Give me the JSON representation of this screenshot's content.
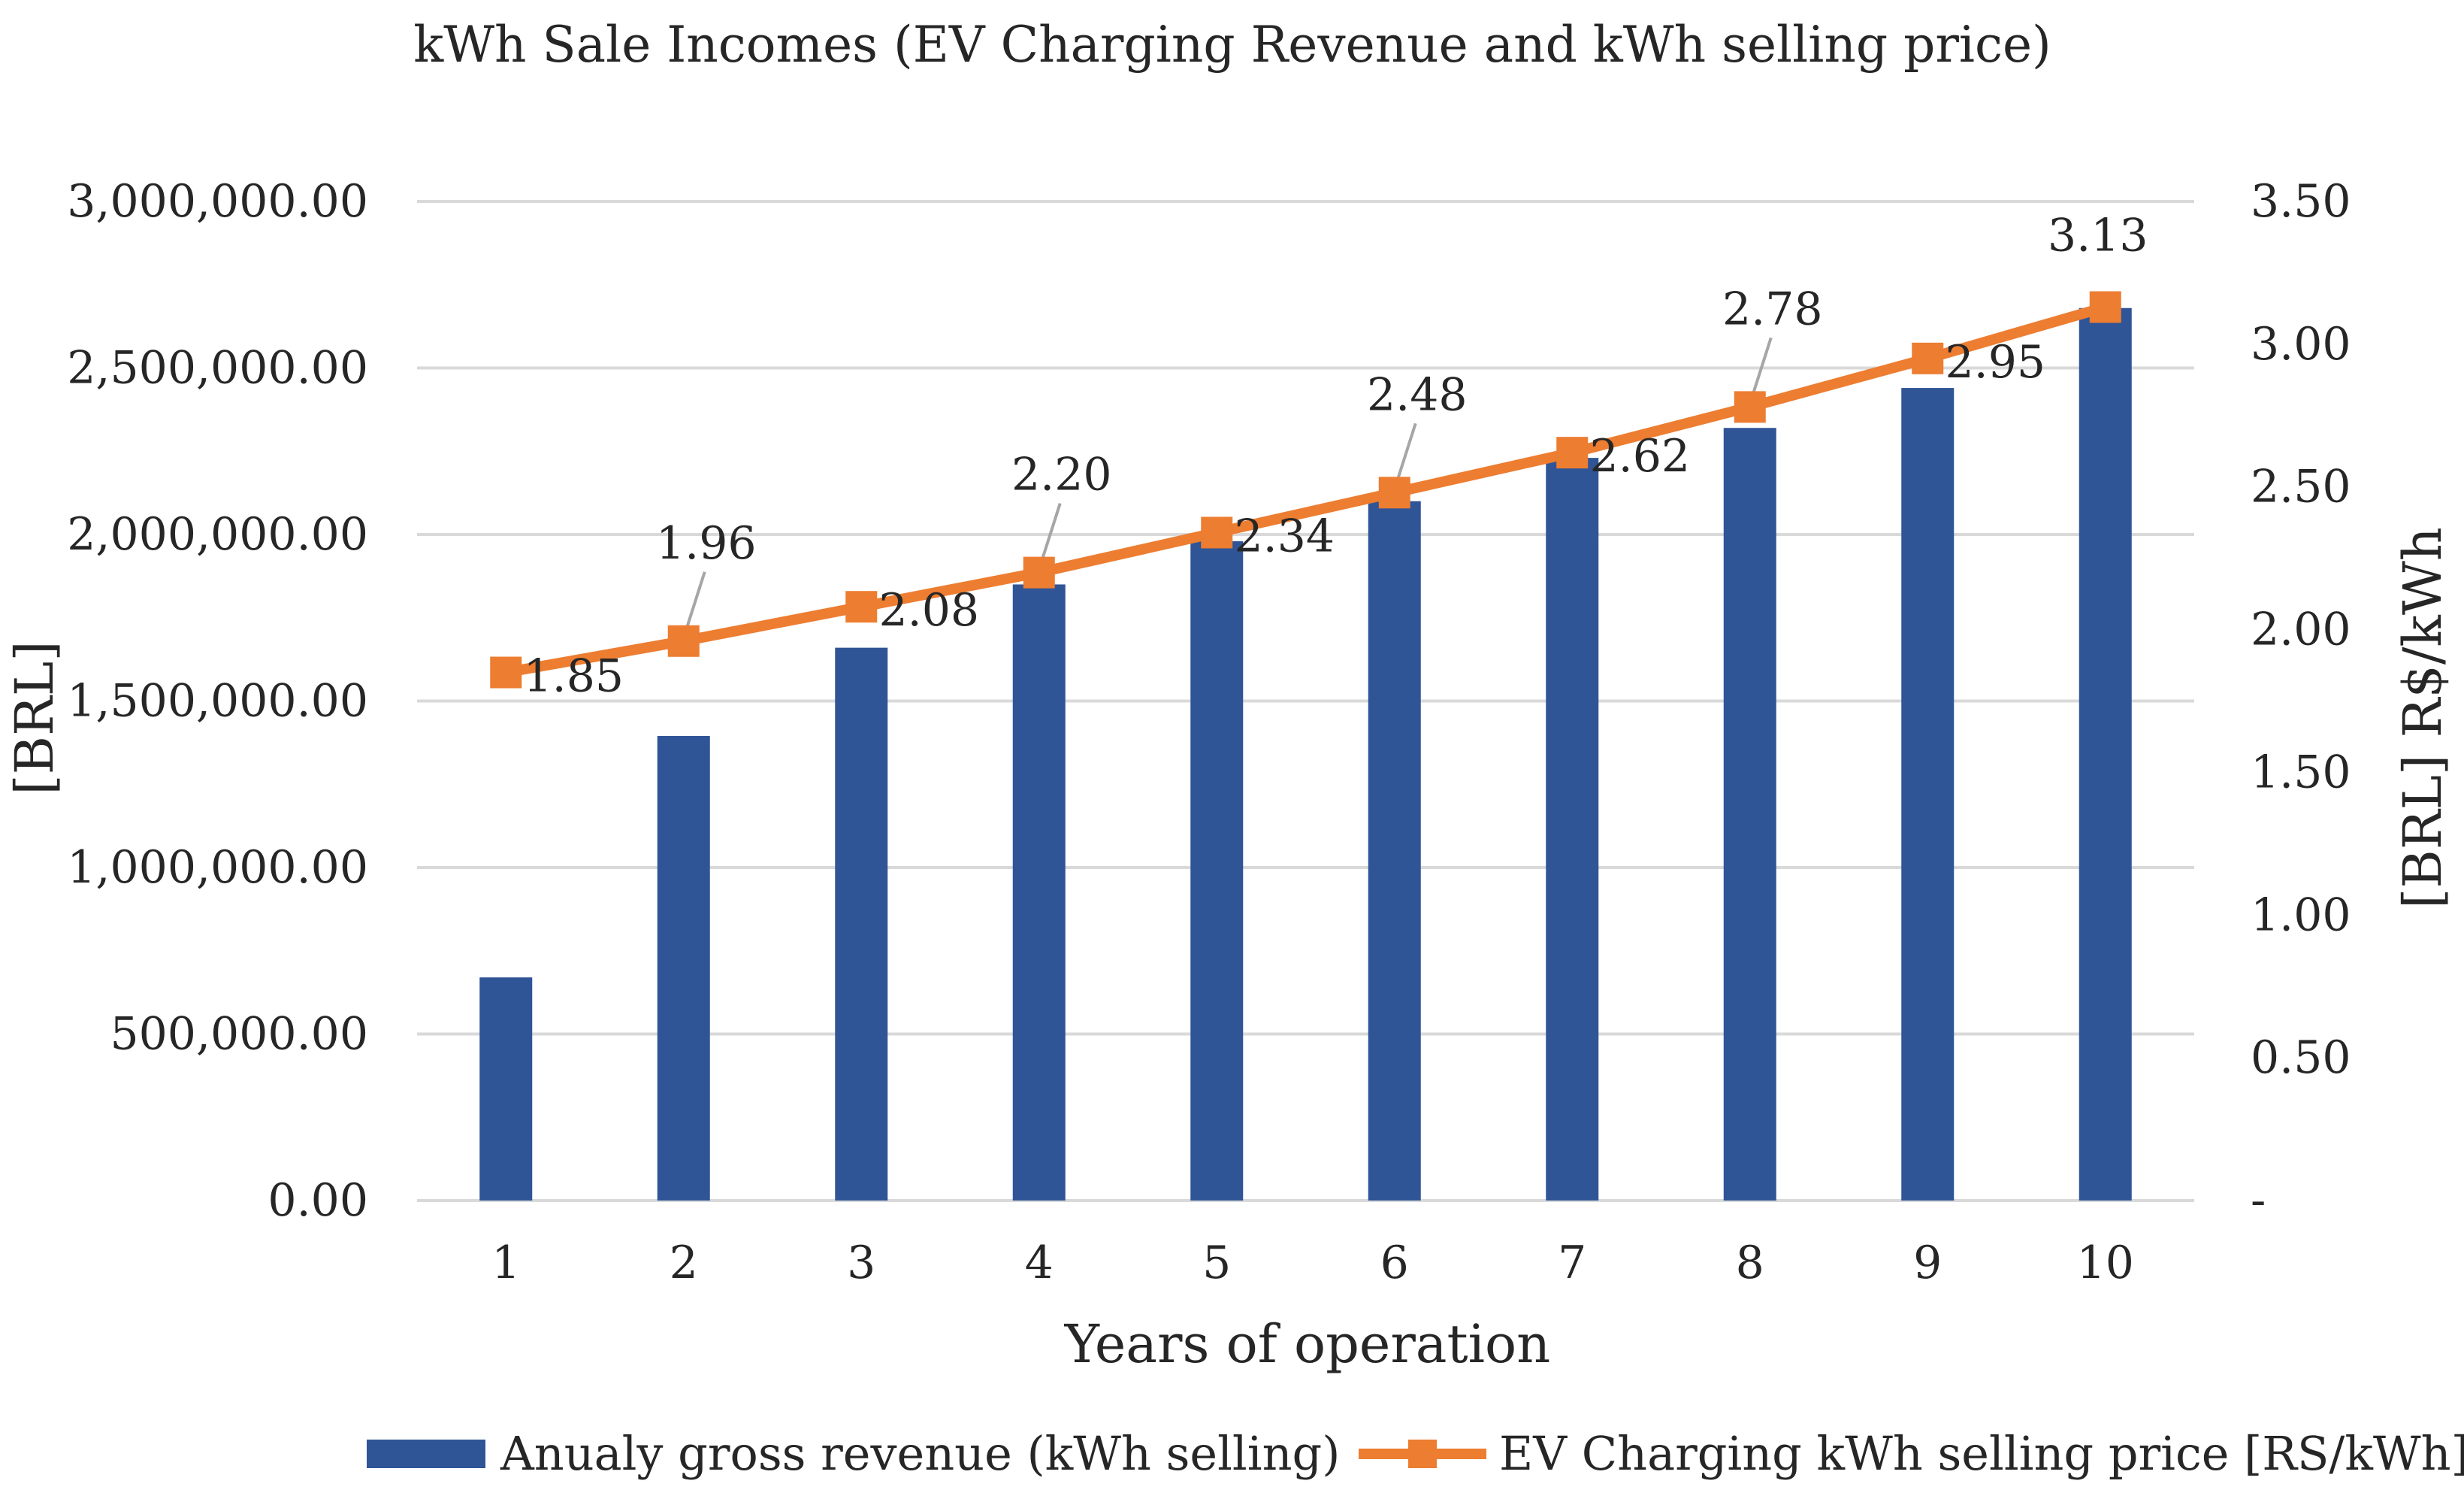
{
  "chart_data": {
    "type": "bar+line",
    "title": "kWh Sale Incomes (EV Charging Revenue and kWh selling price)",
    "xlabel": "Years of operation",
    "ylabel_left": "[BRL]",
    "ylabel_right": "[BRL] R$/kWh",
    "categories": [
      "1",
      "2",
      "3",
      "4",
      "5",
      "6",
      "7",
      "8",
      "9",
      "10"
    ],
    "ylim_left": [
      0,
      3000000
    ],
    "ylim_right": [
      0,
      3.5
    ],
    "y_ticks_left": [
      "0.00",
      "500,000.00",
      "1,000,000.00",
      "1,500,000.00",
      "2,000,000.00",
      "2,500,000.00",
      "3,000,000.00"
    ],
    "y_ticks_right": [
      "-",
      "0.50",
      "1.00",
      "1.50",
      "2.00",
      "2.50",
      "3.00",
      "3.50"
    ],
    "grid": true,
    "legend_position": "bottom",
    "series": [
      {
        "name": "Anualy gross revenue (kWh selling)",
        "type": "bar",
        "axis": "left",
        "color": "#2f5597",
        "values": [
          670000,
          1395000,
          1660000,
          1850000,
          1980000,
          2100000,
          2230000,
          2320000,
          2440000,
          2680000
        ]
      },
      {
        "name": "EV Charging kWh selling price [RS/kWh]",
        "type": "line",
        "axis": "right",
        "color": "#ed7d31",
        "values": [
          1.85,
          1.96,
          2.08,
          2.2,
          2.34,
          2.48,
          2.62,
          2.78,
          2.95,
          3.13
        ],
        "labels": [
          "1.85",
          "1.96",
          "2.08",
          "2.20",
          "2.34",
          "2.48",
          "2.62",
          "2.78",
          "2.95",
          "3.13"
        ]
      }
    ]
  }
}
